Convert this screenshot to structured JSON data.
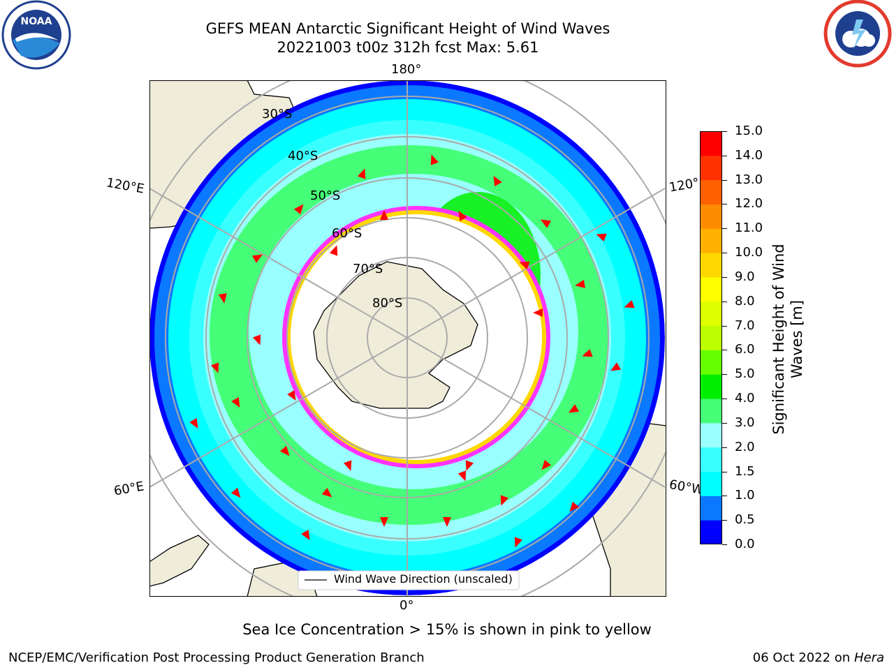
{
  "title_line1": "GEFS MEAN Antarctic Significant Height of Wind Waves",
  "title_line2": "20221003 t00z 312h fcst   Max: 5.61",
  "logos": {
    "left": "noaa-logo",
    "right": "nws-logo"
  },
  "map": {
    "longitude_labels": {
      "top": "180°",
      "bottom": "0°",
      "upper_left": "120°E",
      "upper_right": "120°",
      "lower_left": "60°E",
      "lower_right": "60°W"
    },
    "latitude_labels": [
      "30°S",
      "40°S",
      "50°S",
      "60°S",
      "70°S",
      "80°S"
    ],
    "legend": "Wind Wave Direction (unscaled)",
    "colors": {
      "ocean_low": "#0000ff",
      "land": "#efedda",
      "ice_edge": "#ff33ff",
      "arrow": "#ff0000"
    }
  },
  "colorbar": {
    "label": "Significant Height of Wind Waves [m]",
    "ticks": [
      "15.0",
      "14.0",
      "13.0",
      "12.0",
      "11.0",
      "10.0",
      "9.0",
      "8.0",
      "7.0",
      "6.0",
      "5.0",
      "4.0",
      "3.0",
      "2.0",
      "1.5",
      "1.0",
      "0.5",
      "0.0"
    ],
    "colors": [
      "#0000ff",
      "#0a78ff",
      "#00ffff",
      "#3affff",
      "#99ffff",
      "#44ff77",
      "#00ee00",
      "#66ff00",
      "#bbff00",
      "#ddff00",
      "#ffff00",
      "#ffd700",
      "#ffb000",
      "#ff8c00",
      "#ff6000",
      "#ff3300",
      "#ff0000"
    ]
  },
  "caption": "Sea Ice Concentration > 15% is shown in pink to yellow",
  "footer_left": "NCEP/EMC/Verification Post Processing Product Generation Branch",
  "footer_right": {
    "date": "06 Oct 2022 on",
    "host": "Hera"
  }
}
